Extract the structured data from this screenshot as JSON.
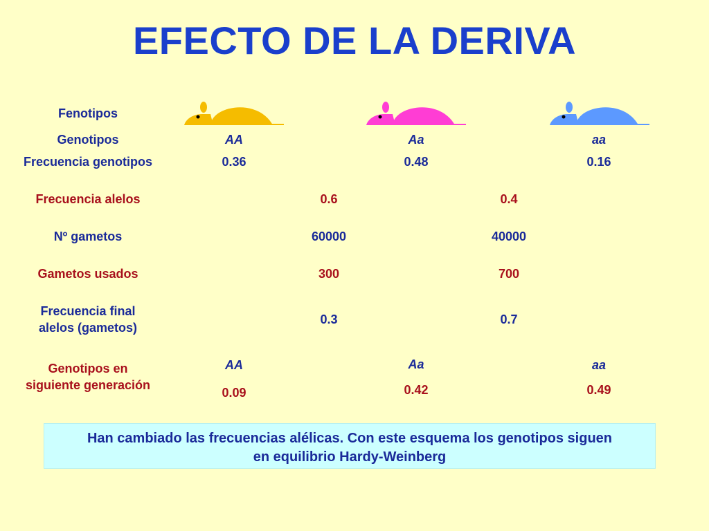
{
  "title": "EFECTO DE LA DERIVA",
  "colors": {
    "title": "#1A3FCC",
    "label_blue": "#1A2A99",
    "label_red": "#A8101C",
    "background": "#FFFFC8",
    "note_background": "#CCFFFF",
    "mouse_AA": "#F5BC00",
    "mouse_Aa": "#FF3DD4",
    "mouse_aa": "#5C99FF"
  },
  "mice": [
    {
      "icon": "yellow-mouse-icon",
      "genotype": "AA"
    },
    {
      "icon": "pink-mouse-icon",
      "genotype": "Aa"
    },
    {
      "icon": "blue-mouse-icon",
      "genotype": "aa"
    }
  ],
  "rows": {
    "fenotipos": "Fenotipos",
    "genotipos": {
      "label": "Genotipos",
      "values": [
        "AA",
        "Aa",
        "aa"
      ]
    },
    "frecuencia_genotipos": {
      "label": "Frecuencia genotipos",
      "values": [
        "0.36",
        "0.48",
        "0.16"
      ]
    },
    "frecuencia_alelos": {
      "label": "Frecuencia alelos",
      "values": [
        "0.6",
        "0.4"
      ]
    },
    "n_gametos": {
      "label": "Nº gametos",
      "values": [
        "60000",
        "40000"
      ]
    },
    "gametos_usados": {
      "label": "Gametos usados",
      "values": [
        "300",
        "700"
      ]
    },
    "frecuencia_final": {
      "label_line1": "Frecuencia final",
      "label_line2": "alelos (gametos)",
      "values": [
        "0.3",
        "0.7"
      ]
    },
    "genotipos_siguiente": {
      "label_line1": "Genotipos en",
      "label_line2": "siguiente generación",
      "genotypes": [
        "AA",
        "Aa",
        "aa"
      ],
      "values": [
        "0.09",
        "0.42",
        "0.49"
      ]
    }
  },
  "note": {
    "line1": "Han cambiado las frecuencias alélicas. Con este esquema los genotipos siguen",
    "line2": "en equilibrio Hardy-Weinberg"
  }
}
